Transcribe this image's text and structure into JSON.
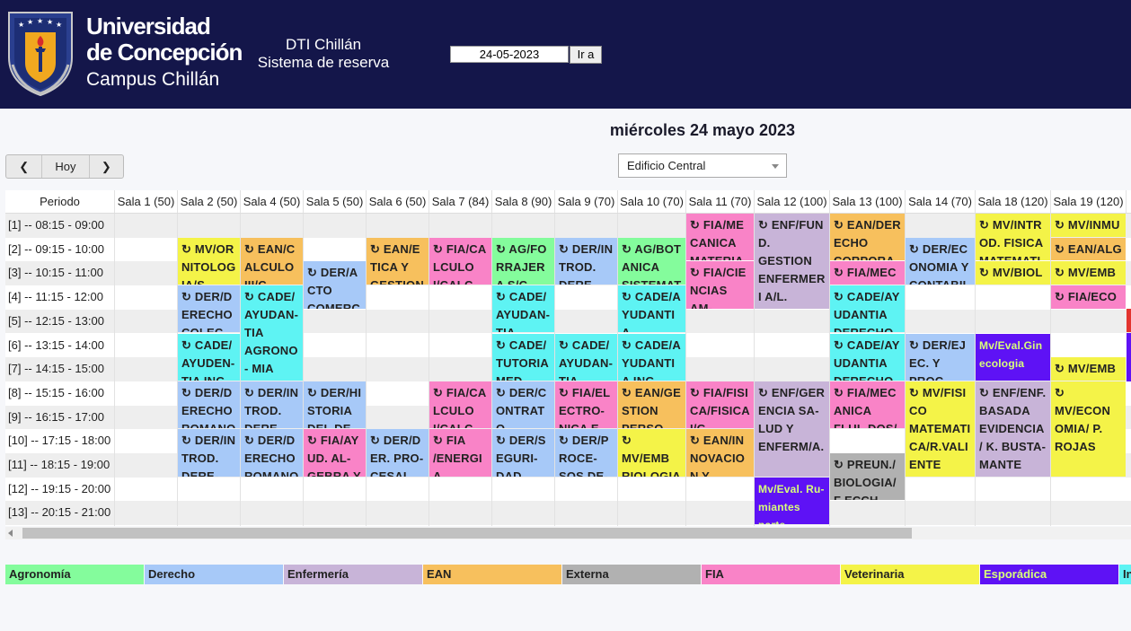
{
  "header": {
    "university_line1": "Universidad",
    "university_line2": "de Concepción",
    "university_line3": "Campus Chillán",
    "system_line1": "DTI Chillán",
    "system_line2": "Sistema de reserva",
    "date_value": "24-05-2023",
    "go_label": "Ir a"
  },
  "calendar": {
    "day_title": "miércoles 24 mayo 2023",
    "nav": {
      "prev": "❮",
      "today": "Hoy",
      "next": "❯"
    },
    "building": "Edificio Central",
    "period_header": "Periodo",
    "rooms": [
      "Sala 1 (50)",
      "Sala 2 (50)",
      "Sala 4 (50)",
      "Sala 5 (50)",
      "Sala 6 (50)",
      "Sala 7 (84)",
      "Sala 8 (90)",
      "Sala 9 (70)",
      "Sala 10 (70)",
      "Sala 11 (70)",
      "Sala 12 (100)",
      "Sala 13 (100)",
      "Sala 14 (70)",
      "Sala 18 (120)",
      "Sala 19 (120)"
    ],
    "periods": [
      "[1] -- 08:15 - 09:00",
      "[2] -- 09:15 - 10:00",
      "[3] -- 10:15 - 11:00",
      "[4] -- 11:15 - 12:00",
      "[5] -- 12:15 - 13:00",
      "[6] -- 13:15 - 14:00",
      "[7] -- 14:15 - 15:00",
      "[8] -- 15:15 - 16:00",
      "[9] -- 16:15 - 17:00",
      "[10] -- 17:15 - 18:00",
      "[11] -- 18:15 - 19:00",
      "[12] -- 19:15 - 20:00",
      "[13] -- 20:15 - 21:00"
    ],
    "events": [
      {
        "room": 1,
        "start": 1,
        "span": 2,
        "text": "↻ MV/OR NITOLOGIA/S",
        "cat": "Veterinaria"
      },
      {
        "room": 1,
        "start": 3,
        "span": 2,
        "text": "↻ DER/D ERECHO COLEC",
        "cat": "Derecho"
      },
      {
        "room": 1,
        "start": 5,
        "span": 2,
        "text": "↻ CADE/ AYUDEN- TIA ING",
        "cat": "Institucional"
      },
      {
        "room": 1,
        "start": 7,
        "span": 2,
        "text": "↻ DER/D ERECHO ROMANO",
        "cat": "Derecho"
      },
      {
        "room": 1,
        "start": 9,
        "span": 2,
        "text": "↻ DER/IN TROD. DERE-",
        "cat": "Derecho"
      },
      {
        "room": 2,
        "start": 1,
        "span": 2,
        "text": "↻ EAN/C ALCULO III/C",
        "cat": "EAN"
      },
      {
        "room": 2,
        "start": 3,
        "span": 4,
        "text": "↻ CADE/ AYUDAN- TIA AGRONO- MIA",
        "cat": "Institucional"
      },
      {
        "room": 2,
        "start": 7,
        "span": 2,
        "text": "↻ DER/IN TROD. DERE-",
        "cat": "Derecho"
      },
      {
        "room": 2,
        "start": 9,
        "span": 2,
        "text": "↻ DER/D ERECHO ROMANO",
        "cat": "Derecho"
      },
      {
        "room": 3,
        "start": 2,
        "span": 2,
        "text": "↻ DER/A CTO COMERCI",
        "cat": "Derecho"
      },
      {
        "room": 3,
        "start": 7,
        "span": 2,
        "text": "↻ DER/HI STORIA DEL DE-",
        "cat": "Derecho"
      },
      {
        "room": 3,
        "start": 9,
        "span": 2,
        "text": "↻ FIA/AY UD. AL- GEBRA Y",
        "cat": "FIA"
      },
      {
        "room": 4,
        "start": 1,
        "span": 2,
        "text": "↻ EAN/E TICA Y GESTION",
        "cat": "EAN"
      },
      {
        "room": 4,
        "start": 9,
        "span": 2,
        "text": "↻ DER/D ER. PRO- CESAL",
        "cat": "Derecho"
      },
      {
        "room": 5,
        "start": 1,
        "span": 2,
        "text": "↻ FIA/CA LCULO I/CALC",
        "cat": "FIA"
      },
      {
        "room": 5,
        "start": 7,
        "span": 2,
        "text": "↻ FIA/CA LCULO I/CALC",
        "cat": "FIA"
      },
      {
        "room": 5,
        "start": 9,
        "span": 2,
        "text": "↻ FIA /ENERGIA RENOVA",
        "cat": "FIA"
      },
      {
        "room": 6,
        "start": 1,
        "span": 2,
        "text": "↻ AG/FO RRAJERA S/C",
        "cat": "Agronomía"
      },
      {
        "room": 6,
        "start": 3,
        "span": 2,
        "text": "↻ CADE/ AYUDAN- TIA",
        "cat": "Institucional"
      },
      {
        "room": 6,
        "start": 5,
        "span": 2,
        "text": "↻ CADE/ TUTORIA MED",
        "cat": "Institucional"
      },
      {
        "room": 6,
        "start": 7,
        "span": 2,
        "text": "↻ DER/C ONTRATO TRABAJO",
        "cat": "Derecho"
      },
      {
        "room": 6,
        "start": 9,
        "span": 2,
        "text": "↻ DER/S EGURI- DAD",
        "cat": "Derecho"
      },
      {
        "room": 7,
        "start": 1,
        "span": 2,
        "text": "↻ DER/IN TROD. DERE-",
        "cat": "Derecho"
      },
      {
        "room": 7,
        "start": 5,
        "span": 2,
        "text": "↻ CADE/ AYUDAN- TIA MEDI-",
        "cat": "Institucional"
      },
      {
        "room": 7,
        "start": 7,
        "span": 2,
        "text": "↻ FIA/EL ECTRO- NICA E",
        "cat": "FIA"
      },
      {
        "room": 7,
        "start": 9,
        "span": 2,
        "text": "↻ DER/P ROCE- SOS DE-",
        "cat": "Derecho"
      },
      {
        "room": 8,
        "start": 1,
        "span": 2,
        "text": "↻ AG/BOT ANICA SISTEMATI",
        "cat": "Agronomía"
      },
      {
        "room": 8,
        "start": 3,
        "span": 2,
        "text": "↻ CADE/A YUDANTIA ENFERME-",
        "cat": "Institucional"
      },
      {
        "room": 8,
        "start": 5,
        "span": 2,
        "text": "↻ CADE/A YUDANTIA ING",
        "cat": "Institucional"
      },
      {
        "room": 8,
        "start": 7,
        "span": 2,
        "text": "↻ EAN/GE STION PERSO-",
        "cat": "EAN"
      },
      {
        "room": 8,
        "start": 9,
        "span": 2,
        "text": "↻ MV/EMB RIOLOGIA/ I",
        "cat": "Veterinaria"
      },
      {
        "room": 9,
        "start": 0,
        "span": 2,
        "text": "↻ FIA/ME CANICA MATERIAL",
        "cat": "FIA"
      },
      {
        "room": 9,
        "start": 2,
        "span": 2,
        "text": "↻ FIA/CIE NCIAS AM- BIENTA-",
        "cat": "FIA"
      },
      {
        "room": 9,
        "start": 7,
        "span": 2,
        "text": "↻ FIA/FISI CA/FISICA I/G",
        "cat": "FIA"
      },
      {
        "room": 9,
        "start": 9,
        "span": 2,
        "text": "↻ EAN/IN NOVACION Y",
        "cat": "EAN"
      },
      {
        "room": 10,
        "start": 0,
        "span": 4,
        "text": "↻ ENF/FUN D. GESTION ENFERMERI A/L. SALAZAR",
        "cat": "Enfermería"
      },
      {
        "room": 10,
        "start": 7,
        "span": 4,
        "text": "↻ ENF/GER ENCIA SA- LUD Y ENFERM/A.",
        "cat": "Enfermería"
      },
      {
        "room": 10,
        "start": 11,
        "span": 2,
        "text": "Mv/Eval. Ru- miantes parte",
        "cat": "Esporádica"
      },
      {
        "room": 11,
        "start": 0,
        "span": 2,
        "text": "↻ EAN/DER ECHO CORPORATI",
        "cat": "EAN"
      },
      {
        "room": 11,
        "start": 2,
        "span": 1,
        "text": "↻ FIA/MEC",
        "cat": "FIA"
      },
      {
        "room": 11,
        "start": 3,
        "span": 2,
        "text": "↻ CADE/AY UDANTIA DERECHO",
        "cat": "Institucional"
      },
      {
        "room": 11,
        "start": 5,
        "span": 2,
        "text": "↻ CADE/AY UDANTIA DERECHO",
        "cat": "Institucional"
      },
      {
        "room": 11,
        "start": 7,
        "span": 2,
        "text": "↻ FIA/MEC ANICA FLUI- DOS/",
        "cat": "FIA"
      },
      {
        "room": 11,
        "start": 10,
        "span": 2,
        "text": "↻ PREUN./ BIOLOGIA/F ECCH",
        "cat": "Externa"
      },
      {
        "room": 12,
        "start": 1,
        "span": 2,
        "text": "↻ DER/EC ONOMIA Y CONTABILI",
        "cat": "Derecho"
      },
      {
        "room": 12,
        "start": 5,
        "span": 2,
        "text": "↻ DER/EJ EC. Y PROC",
        "cat": "Derecho"
      },
      {
        "room": 12,
        "start": 7,
        "span": 4,
        "text": "↻ MV/FISI CO MATEMATI CA/R.VALI ENTE",
        "cat": "Veterinaria"
      },
      {
        "room": 13,
        "start": 0,
        "span": 2,
        "text": "↻ MV/INTR OD. FISICA MATEMATIC",
        "cat": "Veterinaria"
      },
      {
        "room": 13,
        "start": 2,
        "span": 1,
        "text": "↻ MV/BIOL",
        "cat": "Veterinaria"
      },
      {
        "room": 13,
        "start": 5,
        "span": 2,
        "text": "Mv/Eval.Gin ecologia",
        "cat": "Esporádica"
      },
      {
        "room": 13,
        "start": 7,
        "span": 4,
        "text": "↻ ENF/ENF. BASADA EVIDENCIA/ K. BUSTA- MANTE",
        "cat": "Enfermería"
      },
      {
        "room": 14,
        "start": 0,
        "span": 1,
        "text": "↻ MV/INMU",
        "cat": "Veterinaria"
      },
      {
        "room": 14,
        "start": 1,
        "span": 1,
        "text": "↻ EAN/ALG",
        "cat": "EAN"
      },
      {
        "room": 14,
        "start": 2,
        "span": 1,
        "text": "↻ MV/EMB",
        "cat": "Veterinaria"
      },
      {
        "room": 14,
        "start": 3,
        "span": 1,
        "text": "↻ FIA/ECO",
        "cat": "FIA"
      },
      {
        "room": 14,
        "start": 6,
        "span": 1,
        "text": "↻ MV/EMB",
        "cat": "Veterinaria"
      },
      {
        "room": 14,
        "start": 7,
        "span": 4,
        "text": "↻ MV/ECON OMIA/ P. ROJAS",
        "cat": "Veterinaria"
      }
    ]
  },
  "legend": [
    {
      "label": "Agronomía",
      "color": "#84fc9c"
    },
    {
      "label": "Derecho",
      "color": "#a7c9f8"
    },
    {
      "label": "Enfermería",
      "color": "#c8b4d8"
    },
    {
      "label": "EAN",
      "color": "#f7c05d"
    },
    {
      "label": "Externa",
      "color": "#b1b1b1"
    },
    {
      "label": "FIA",
      "color": "#f983c7"
    },
    {
      "label": "Veterinaria",
      "color": "#f4f348"
    },
    {
      "label": "Esporádica",
      "color": "#5e12f5"
    },
    {
      "label": "In",
      "color": "#5ef3f3"
    }
  ],
  "category_colors": {
    "Agronomía": "#84fc9c",
    "Derecho": "#a7c9f8",
    "Enfermería": "#c8b4d8",
    "EAN": "#f7c05d",
    "Externa": "#b1b1b1",
    "FIA": "#f983c7",
    "Veterinaria": "#f4f348",
    "Esporádica": "#5e12f5",
    "Institucional": "#5ef3f3"
  }
}
